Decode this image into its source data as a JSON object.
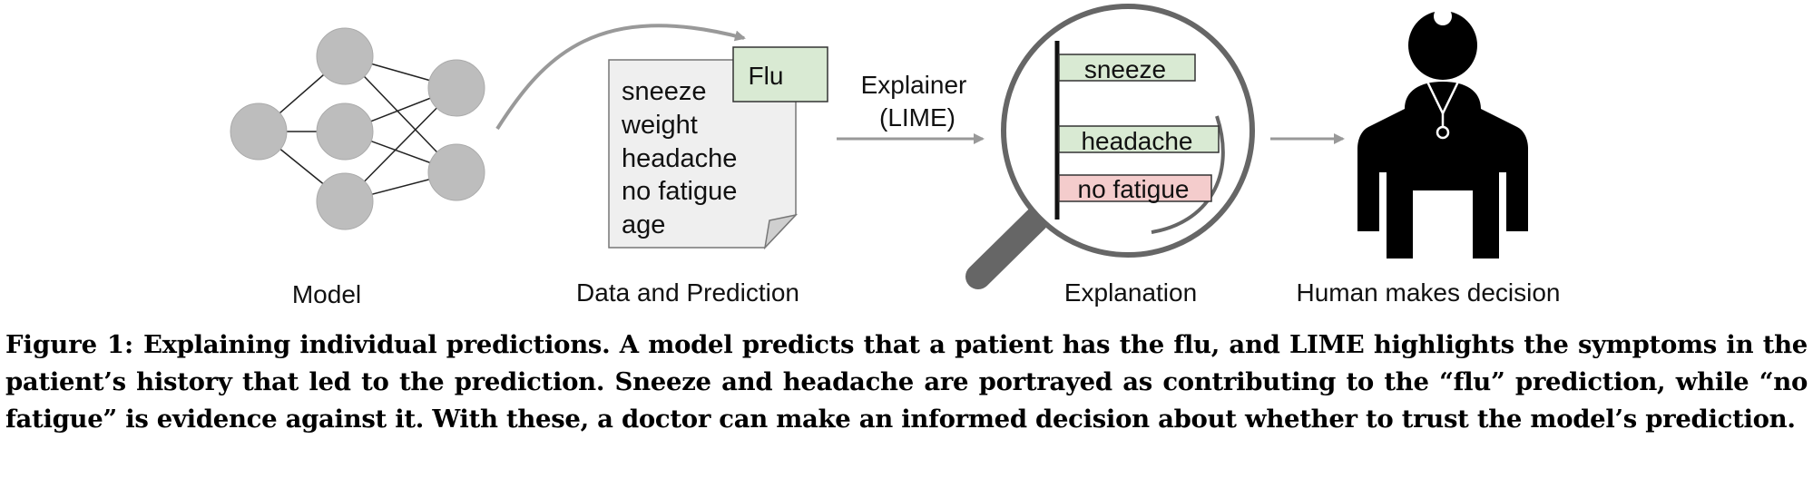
{
  "diagram": {
    "model_label": "Model",
    "data_label": "Data and Prediction",
    "prediction_tag": "Flu",
    "features": [
      "sneeze",
      "weight",
      "headache",
      "no fatigue",
      "age"
    ],
    "explainer_label_line1": "Explainer",
    "explainer_label_line2": "(LIME)",
    "explanation_label": "Explanation",
    "explanation_bars": [
      {
        "label": "sneeze",
        "color": "#d9ead3"
      },
      {
        "label": "headache",
        "color": "#d9ead3"
      },
      {
        "label": "no fatigue",
        "color": "#f4cccc"
      }
    ],
    "decision_label": "Human makes decision",
    "node_color": "#bdbdbd",
    "arrow_color": "#999999"
  },
  "caption": {
    "label": "Figure 1:",
    "text": "Explaining individual predictions. A model predicts that a patient has the flu, and LIME highlights the symptoms in the patient’s history that led to the prediction. Sneeze and headache are portrayed as contributing to the “flu” prediction, while “no fatigue” is evidence against it. With these, a doctor can make an informed decision about whether to trust the model’s prediction."
  }
}
